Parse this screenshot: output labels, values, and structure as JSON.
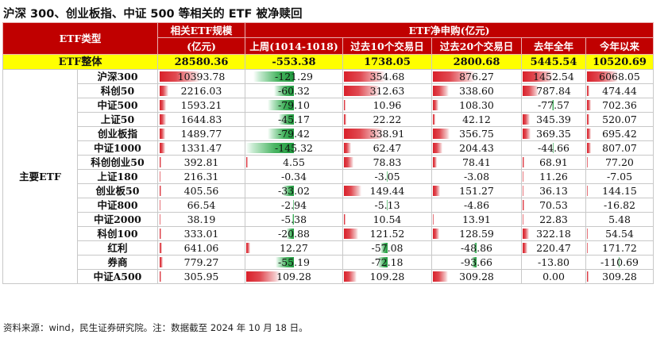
{
  "title": "沪深 300、创业板指、中证 500 等相关的 ETF 被净赎回",
  "footer": "资料来源：wind，民生证券研究院。注：数据截至 2024 年 10 月 18 日。",
  "header": {
    "type_label": "ETF类型",
    "scale_label": "相关ETF规模",
    "scale_unit": "(亿元)",
    "net_label": "ETF净申购(亿元)",
    "cols": [
      "上周(1014-1018)",
      "过去10个交易日",
      "过去20个交易日",
      "去年全年",
      "今年以来"
    ]
  },
  "total": {
    "label": "ETF整体",
    "values": [
      "28580.36",
      "-553.38",
      "1738.05",
      "2800.68",
      "5445.54",
      "10520.69"
    ]
  },
  "group_label": "主要ETF",
  "colors": {
    "header": "#c00000",
    "total": "#ffff00",
    "positive": "#d9202a",
    "negative": "#1f9a3e"
  },
  "rows": [
    {
      "name": "沪深300",
      "values": [
        "10393.78",
        "-121.29",
        "354.68",
        "876.27",
        "1452.54",
        "6068.05"
      ]
    },
    {
      "name": "科创50",
      "values": [
        "2216.03",
        "-60.32",
        "312.63",
        "338.60",
        "787.84",
        "474.44"
      ]
    },
    {
      "name": "中证500",
      "values": [
        "1593.21",
        "-79.10",
        "10.96",
        "108.30",
        "-77.57",
        "702.36"
      ]
    },
    {
      "name": "上证50",
      "values": [
        "1644.83",
        "-45.17",
        "22.22",
        "42.12",
        "345.39",
        "520.07"
      ]
    },
    {
      "name": "创业板指",
      "values": [
        "1489.77",
        "-79.42",
        "338.91",
        "356.75",
        "369.35",
        "695.42"
      ]
    },
    {
      "name": "中证1000",
      "values": [
        "1331.47",
        "-145.32",
        "62.47",
        "204.43",
        "-44.66",
        "807.07"
      ]
    },
    {
      "name": "科创创业50",
      "values": [
        "392.81",
        "4.55",
        "78.83",
        "78.41",
        "68.91",
        "77.20"
      ]
    },
    {
      "name": "上证180",
      "values": [
        "216.31",
        "-0.34",
        "-3.05",
        "-3.08",
        "11.26",
        "-7.05"
      ]
    },
    {
      "name": "创业板50",
      "values": [
        "405.56",
        "-33.02",
        "149.44",
        "151.27",
        "36.13",
        "144.15"
      ]
    },
    {
      "name": "中证800",
      "values": [
        "66.54",
        "-2.94",
        "-5.13",
        "-4.86",
        "70.53",
        "-16.82"
      ]
    },
    {
      "name": "中证2000",
      "values": [
        "38.19",
        "-5.38",
        "10.54",
        "13.91",
        "22.83",
        "5.48"
      ]
    },
    {
      "name": "科创100",
      "values": [
        "333.01",
        "-20.88",
        "121.52",
        "128.59",
        "322.18",
        "54.54"
      ]
    },
    {
      "name": "红利",
      "values": [
        "641.06",
        "12.27",
        "-57.08",
        "-48.86",
        "220.47",
        "171.72"
      ]
    },
    {
      "name": "券商",
      "values": [
        "779.27",
        "-55.19",
        "-72.18",
        "-93.66",
        "-13.80",
        "-110.69"
      ]
    },
    {
      "name": "中证A500",
      "values": [
        "305.95",
        "109.28",
        "109.28",
        "309.28",
        "0.00",
        "309.28"
      ]
    }
  ]
}
